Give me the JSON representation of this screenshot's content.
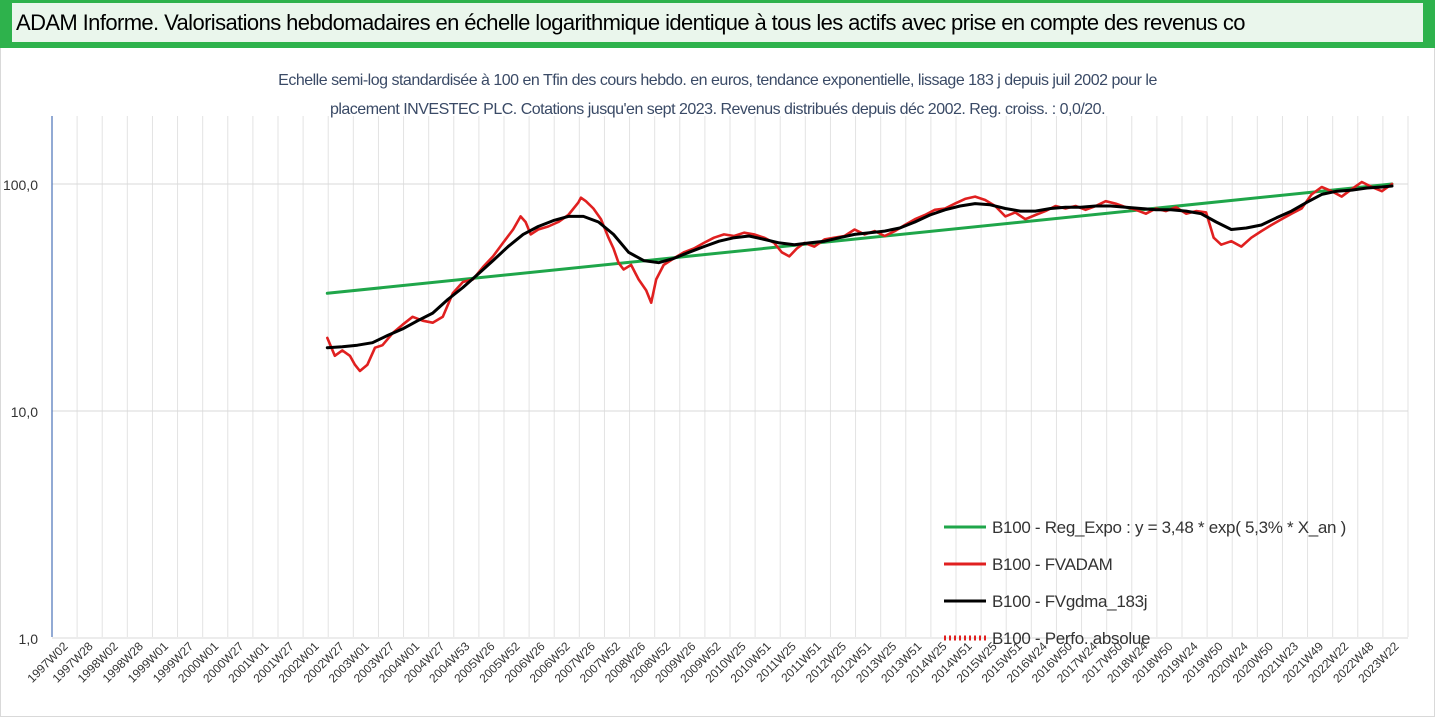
{
  "header": {
    "title": "ADAM Informe. Valorisations hebdomadaires en échelle logarithmique identique à tous les actifs avec prise en compte des revenus co"
  },
  "chart_data": {
    "type": "line",
    "title_line1": "Echelle semi-log standardisée à 100 en Tfin des cours hebdo. en euros, tendance exponentielle, lissage 183 j depuis juil 2002 pour le",
    "title_line2": "placement INVESTEC PLC. Cotations jusqu'en sept 2023. Revenus distribués depuis déc 2002. Reg. croiss. : 0,0/20.",
    "y_scale": "log",
    "ylim": [
      1,
      200
    ],
    "y_ticks": [
      1,
      10,
      100
    ],
    "y_tick_labels": [
      "1,0",
      "10,0",
      "100,0"
    ],
    "grid": "vertical",
    "legend_position": "bottom-right",
    "x_labels": [
      "1997W02",
      "1997W28",
      "1998W02",
      "1998W28",
      "1999W01",
      "1999W27",
      "2000W01",
      "2000W27",
      "2001W01",
      "2001W27",
      "2002W01",
      "2002W27",
      "2003W01",
      "2003W27",
      "2004W01",
      "2004W27",
      "2004W53",
      "2005W26",
      "2005W52",
      "2006W26",
      "2006W52",
      "2007W26",
      "2007W52",
      "2008W26",
      "2008W52",
      "2009W26",
      "2009W52",
      "2010W25",
      "2010W51",
      "2011W25",
      "2011W51",
      "2012W25",
      "2012W51",
      "2013W25",
      "2013W51",
      "2014W25",
      "2014W51",
      "2015W25",
      "2015W51",
      "2016W24",
      "2016W50",
      "2017W24",
      "2017W50",
      "2018W24",
      "2018W50",
      "2019W24",
      "2019W50",
      "2020W24",
      "2020W50",
      "2021W23",
      "2021W49",
      "2022W22",
      "2022W48",
      "2023W22"
    ],
    "series": [
      {
        "name": "B100 - Reg_Expo : y = 3,48 * exp( 5,3% *  X_an )",
        "color": "#1fa64a",
        "style": "solid",
        "points": [
          [
            2002.5,
            33
          ],
          [
            2023.7,
            100
          ]
        ]
      },
      {
        "name": "B100 - FVADAM",
        "color": "#e02020",
        "style": "solid",
        "points": [
          [
            2002.5,
            21
          ],
          [
            2002.65,
            17.5
          ],
          [
            2002.8,
            18.5
          ],
          [
            2002.95,
            17.5
          ],
          [
            2003.05,
            16
          ],
          [
            2003.15,
            15
          ],
          [
            2003.3,
            16
          ],
          [
            2003.45,
            19
          ],
          [
            2003.6,
            19.5
          ],
          [
            2003.8,
            22
          ],
          [
            2004.0,
            24
          ],
          [
            2004.2,
            26
          ],
          [
            2004.4,
            25
          ],
          [
            2004.6,
            24.5
          ],
          [
            2004.8,
            26
          ],
          [
            2005.0,
            33
          ],
          [
            2005.2,
            37
          ],
          [
            2005.4,
            38
          ],
          [
            2005.6,
            43
          ],
          [
            2005.8,
            48
          ],
          [
            2006.0,
            55
          ],
          [
            2006.2,
            63
          ],
          [
            2006.35,
            72
          ],
          [
            2006.45,
            68
          ],
          [
            2006.55,
            60
          ],
          [
            2006.7,
            63
          ],
          [
            2006.9,
            65
          ],
          [
            2007.1,
            68
          ],
          [
            2007.3,
            73
          ],
          [
            2007.5,
            83
          ],
          [
            2007.55,
            87
          ],
          [
            2007.65,
            84
          ],
          [
            2007.8,
            78
          ],
          [
            2007.95,
            70
          ],
          [
            2008.1,
            58
          ],
          [
            2008.2,
            52
          ],
          [
            2008.3,
            45
          ],
          [
            2008.4,
            42
          ],
          [
            2008.55,
            44
          ],
          [
            2008.7,
            38
          ],
          [
            2008.85,
            34
          ],
          [
            2008.95,
            30
          ],
          [
            2009.05,
            38
          ],
          [
            2009.2,
            44
          ],
          [
            2009.4,
            47
          ],
          [
            2009.6,
            50
          ],
          [
            2009.8,
            52
          ],
          [
            2010.0,
            55
          ],
          [
            2010.2,
            58
          ],
          [
            2010.4,
            60
          ],
          [
            2010.6,
            59
          ],
          [
            2010.8,
            61
          ],
          [
            2011.0,
            60
          ],
          [
            2011.2,
            58
          ],
          [
            2011.4,
            55
          ],
          [
            2011.55,
            50
          ],
          [
            2011.7,
            48
          ],
          [
            2011.85,
            52
          ],
          [
            2012.0,
            55
          ],
          [
            2012.2,
            53
          ],
          [
            2012.4,
            57
          ],
          [
            2012.6,
            58
          ],
          [
            2012.8,
            59
          ],
          [
            2013.0,
            63
          ],
          [
            2013.2,
            60
          ],
          [
            2013.4,
            62
          ],
          [
            2013.6,
            59
          ],
          [
            2013.8,
            62
          ],
          [
            2014.0,
            66
          ],
          [
            2014.2,
            70
          ],
          [
            2014.4,
            73
          ],
          [
            2014.6,
            77
          ],
          [
            2014.8,
            78
          ],
          [
            2015.0,
            82
          ],
          [
            2015.2,
            86
          ],
          [
            2015.4,
            88
          ],
          [
            2015.6,
            85
          ],
          [
            2015.8,
            80
          ],
          [
            2016.0,
            72
          ],
          [
            2016.2,
            75
          ],
          [
            2016.4,
            70
          ],
          [
            2016.6,
            73
          ],
          [
            2016.8,
            76
          ],
          [
            2017.0,
            80
          ],
          [
            2017.2,
            78
          ],
          [
            2017.4,
            80
          ],
          [
            2017.6,
            77
          ],
          [
            2017.8,
            80
          ],
          [
            2018.0,
            84
          ],
          [
            2018.2,
            82
          ],
          [
            2018.4,
            79
          ],
          [
            2018.6,
            77
          ],
          [
            2018.8,
            74
          ],
          [
            2019.0,
            78
          ],
          [
            2019.2,
            76
          ],
          [
            2019.4,
            79
          ],
          [
            2019.6,
            74
          ],
          [
            2019.8,
            76
          ],
          [
            2020.0,
            75
          ],
          [
            2020.15,
            58
          ],
          [
            2020.3,
            54
          ],
          [
            2020.5,
            56
          ],
          [
            2020.7,
            53
          ],
          [
            2020.9,
            58
          ],
          [
            2021.1,
            62
          ],
          [
            2021.3,
            66
          ],
          [
            2021.5,
            70
          ],
          [
            2021.7,
            74
          ],
          [
            2021.9,
            78
          ],
          [
            2022.1,
            90
          ],
          [
            2022.3,
            97
          ],
          [
            2022.5,
            93
          ],
          [
            2022.7,
            88
          ],
          [
            2022.9,
            95
          ],
          [
            2023.1,
            102
          ],
          [
            2023.3,
            97
          ],
          [
            2023.5,
            93
          ],
          [
            2023.7,
            100
          ]
        ]
      },
      {
        "name": "B100 - FVgdma_183j",
        "color": "#000000",
        "style": "solid",
        "points": [
          [
            2002.5,
            19
          ],
          [
            2002.8,
            19.2
          ],
          [
            2003.1,
            19.5
          ],
          [
            2003.4,
            20
          ],
          [
            2003.7,
            21.5
          ],
          [
            2004.0,
            23
          ],
          [
            2004.3,
            25
          ],
          [
            2004.6,
            27
          ],
          [
            2004.9,
            31
          ],
          [
            2005.2,
            35
          ],
          [
            2005.5,
            40
          ],
          [
            2005.8,
            46
          ],
          [
            2006.1,
            53
          ],
          [
            2006.4,
            60
          ],
          [
            2006.7,
            65
          ],
          [
            2007.0,
            69
          ],
          [
            2007.3,
            72
          ],
          [
            2007.6,
            72
          ],
          [
            2007.9,
            68
          ],
          [
            2008.2,
            60
          ],
          [
            2008.5,
            50
          ],
          [
            2008.8,
            46
          ],
          [
            2009.1,
            45
          ],
          [
            2009.4,
            47
          ],
          [
            2009.7,
            50
          ],
          [
            2010.0,
            53
          ],
          [
            2010.3,
            56
          ],
          [
            2010.6,
            58
          ],
          [
            2010.9,
            59
          ],
          [
            2011.2,
            57
          ],
          [
            2011.5,
            55
          ],
          [
            2011.8,
            54
          ],
          [
            2012.1,
            55
          ],
          [
            2012.4,
            56
          ],
          [
            2012.7,
            58
          ],
          [
            2013.0,
            60
          ],
          [
            2013.3,
            61
          ],
          [
            2013.6,
            62
          ],
          [
            2013.9,
            64
          ],
          [
            2014.2,
            68
          ],
          [
            2014.5,
            73
          ],
          [
            2014.8,
            77
          ],
          [
            2015.1,
            80
          ],
          [
            2015.4,
            82
          ],
          [
            2015.7,
            81
          ],
          [
            2016.0,
            78
          ],
          [
            2016.3,
            76
          ],
          [
            2016.6,
            76
          ],
          [
            2016.9,
            78
          ],
          [
            2017.2,
            79
          ],
          [
            2017.5,
            79
          ],
          [
            2017.8,
            80
          ],
          [
            2018.1,
            80
          ],
          [
            2018.4,
            79
          ],
          [
            2018.7,
            78
          ],
          [
            2019.0,
            77
          ],
          [
            2019.3,
            77
          ],
          [
            2019.6,
            76
          ],
          [
            2019.9,
            74
          ],
          [
            2020.2,
            68
          ],
          [
            2020.5,
            63
          ],
          [
            2020.8,
            64
          ],
          [
            2021.1,
            66
          ],
          [
            2021.4,
            71
          ],
          [
            2021.7,
            76
          ],
          [
            2022.0,
            83
          ],
          [
            2022.3,
            90
          ],
          [
            2022.6,
            93
          ],
          [
            2022.9,
            94
          ],
          [
            2023.2,
            96
          ],
          [
            2023.5,
            97
          ],
          [
            2023.7,
            98
          ]
        ]
      },
      {
        "name": "B100 - Perfo. absolue",
        "color": "#e02020",
        "style": "dotted",
        "points": []
      }
    ]
  }
}
